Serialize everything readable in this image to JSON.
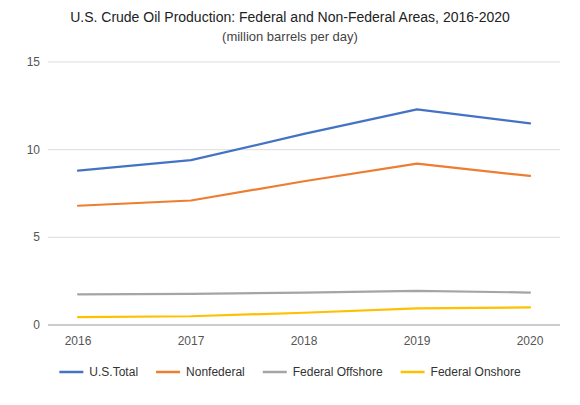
{
  "chart_data": {
    "type": "line",
    "title": "U.S. Crude Oil Production: Federal and Non-Federal Areas, 2016-2020",
    "subtitle": "(million barrels per day)",
    "categories": [
      "2016",
      "2017",
      "2018",
      "2019",
      "2020"
    ],
    "series": [
      {
        "name": "U.S.Total",
        "color": "#4472C4",
        "values": [
          8.8,
          9.4,
          10.9,
          12.3,
          11.5
        ]
      },
      {
        "name": "Nonfederal",
        "color": "#ED7D31",
        "values": [
          6.8,
          7.1,
          8.2,
          9.2,
          8.5
        ]
      },
      {
        "name": "Federal Offshore",
        "color": "#A5A5A5",
        "values": [
          1.75,
          1.78,
          1.85,
          1.95,
          1.85
        ]
      },
      {
        "name": "Federal Onshore",
        "color": "#FFC000",
        "values": [
          0.45,
          0.5,
          0.7,
          0.95,
          1.0
        ]
      }
    ],
    "ylim": [
      0,
      15
    ],
    "yticks": [
      0,
      5,
      10,
      15
    ],
    "grid": true,
    "legend": "bottom"
  }
}
